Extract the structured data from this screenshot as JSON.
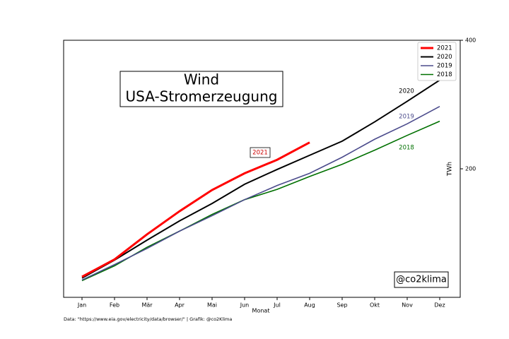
{
  "chart_data": {
    "type": "line",
    "title": "Wind",
    "subtitle": "USA-Stromerzeugung",
    "x_label": "Monat",
    "y_label": "TWh",
    "source": "Data: \"https://www.eia.gov/electricity/data/browser/\" | Grafik: @co2Klima",
    "watermark": "@co2klima",
    "categories": [
      "Jan",
      "Feb",
      "Mär",
      "Apr",
      "Mai",
      "Jun",
      "Jul",
      "Aug",
      "Sep",
      "Okt",
      "Nov",
      "Dez"
    ],
    "series": [
      {
        "name": "2021",
        "color": "#ff0000",
        "width": 3,
        "values": [
          32,
          59,
          98,
          134,
          167,
          193,
          214,
          241,
          null,
          null,
          null,
          null
        ]
      },
      {
        "name": "2020",
        "color": "#000000",
        "width": 2,
        "values": [
          30,
          58,
          89,
          119,
          146,
          176,
          199,
          221,
          243,
          273,
          305,
          338
        ]
      },
      {
        "name": "2019",
        "color": "#4b4b8c",
        "width": 1.6,
        "values": [
          27,
          51,
          76,
          103,
          127,
          152,
          174,
          193,
          218,
          246,
          270,
          297
        ]
      },
      {
        "name": "2018",
        "color": "#007000",
        "width": 1.6,
        "values": [
          26,
          49,
          78,
          103,
          129,
          152,
          168,
          188,
          207,
          229,
          252,
          274
        ]
      }
    ],
    "annotations": [
      {
        "text": "2021",
        "color": "#cc0000",
        "boxed": true
      },
      {
        "text": "2020",
        "color": "#000000",
        "boxed": false
      },
      {
        "text": "2019",
        "color": "#4b4b8c",
        "boxed": false
      },
      {
        "text": "2018",
        "color": "#007000",
        "boxed": false
      }
    ],
    "ylim": [
      0,
      400
    ],
    "yticks": [
      200,
      400
    ],
    "y_axis_side": "right",
    "grid": false,
    "legend": "upper right"
  }
}
